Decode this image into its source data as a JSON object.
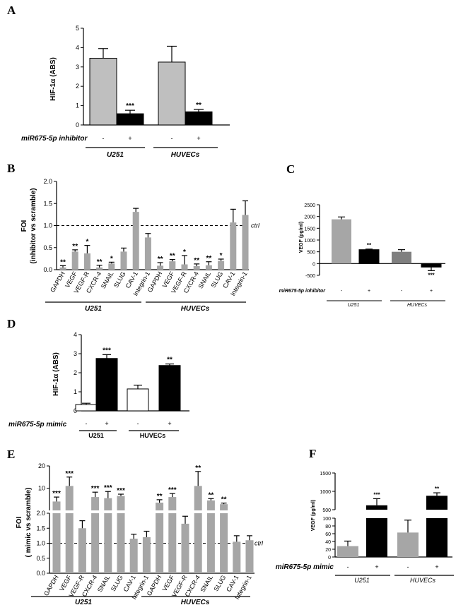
{
  "panels": {
    "A": "A",
    "B": "B",
    "C": "C",
    "D": "D",
    "E": "E",
    "F": "F"
  },
  "chart_data": [
    {
      "id": "A",
      "type": "bar",
      "ylabel": "HIF-1α (ABS)",
      "ylim": [
        0,
        5
      ],
      "yticks": [
        "0",
        "1",
        "2",
        "3",
        "4",
        "5"
      ],
      "condition_label": "miR675-5p inhibitor",
      "signs": [
        "-",
        "+",
        "-",
        "+"
      ],
      "groups": [
        "U251",
        "HUVECs"
      ],
      "bars": [
        {
          "value": 3.45,
          "err": 0.5,
          "color": "#bfbfbf",
          "stars": ""
        },
        {
          "value": 0.58,
          "err": 0.18,
          "color": "#000000",
          "stars": "***"
        },
        {
          "value": 3.25,
          "err": 0.82,
          "color": "#bfbfbf",
          "stars": ""
        },
        {
          "value": 0.68,
          "err": 0.12,
          "color": "#000000",
          "stars": "**"
        }
      ]
    },
    {
      "id": "B",
      "type": "bar",
      "ylabel": "FOI",
      "ylabel2": "(inhibitor vs scramble)",
      "ylim": [
        0,
        2
      ],
      "yticks": [
        "0.0",
        "0.5",
        "1.0",
        "1.5",
        "2.0"
      ],
      "reference_line": {
        "value": 1.0,
        "label": "ctrl"
      },
      "groups": [
        "U251",
        "HUVECs"
      ],
      "categories": [
        "GAPDH",
        "VEGF",
        "VEGF-R",
        "CXCR-4",
        "SNAIL",
        "SLUG",
        "CAV-1",
        "Integrin-1",
        "GAPDH",
        "VEGF",
        "VEGF-R",
        "CXCR-4",
        "SNAIL",
        "SLUG",
        "CAV-1",
        "Integrin-1"
      ],
      "values": [
        0.05,
        0.41,
        0.37,
        0.05,
        0.14,
        0.41,
        1.31,
        0.73,
        0.09,
        0.19,
        0.12,
        0.08,
        0.1,
        0.2,
        1.07,
        1.24
      ],
      "errors": [
        0.04,
        0.04,
        0.18,
        0.05,
        0.03,
        0.08,
        0.08,
        0.09,
        0.07,
        0.04,
        0.2,
        0.05,
        0.08,
        0.04,
        0.3,
        0.32
      ],
      "stars": [
        "**",
        "**",
        "*",
        "**",
        "*",
        "",
        "",
        "",
        "**",
        "**",
        "*",
        "**",
        "**",
        "*",
        "",
        ""
      ],
      "color": "#a6a6a6"
    },
    {
      "id": "C",
      "type": "bar",
      "ylabel": "VEGF (pg/ml)",
      "ylim": [
        -500,
        2500
      ],
      "yticks": [
        "-500",
        "0",
        "500",
        "1000",
        "1500",
        "2000",
        "2500"
      ],
      "condition_label": "miR675-5p inhibitor",
      "signs": [
        "-",
        "+",
        "-",
        "+"
      ],
      "groups": [
        "U251",
        "HUVECs"
      ],
      "bars": [
        {
          "value": 1880,
          "err": 100,
          "color": "#a6a6a6",
          "stars": ""
        },
        {
          "value": 590,
          "err": 25,
          "color": "#000000",
          "stars": "**"
        },
        {
          "value": 500,
          "err": 90,
          "color": "#7f7f7f",
          "stars": ""
        },
        {
          "value": -150,
          "err": 150,
          "color": "#000000",
          "stars": "***"
        }
      ]
    },
    {
      "id": "D",
      "type": "bar",
      "ylabel": "HIF-1α (ABS)",
      "ylim": [
        0,
        4
      ],
      "yticks": [
        "0",
        "1",
        "2",
        "3",
        "4"
      ],
      "condition_label": "miR675-5p mimic",
      "signs": [
        "-",
        "+",
        "-",
        "+"
      ],
      "groups": [
        "U251",
        "HUVECs"
      ],
      "bars": [
        {
          "value": 0.33,
          "err": 0.07,
          "color": "#ffffff",
          "stars": ""
        },
        {
          "value": 2.75,
          "err": 0.2,
          "color": "#000000",
          "stars": "***"
        },
        {
          "value": 1.15,
          "err": 0.2,
          "color": "#ffffff",
          "stars": ""
        },
        {
          "value": 2.38,
          "err": 0.08,
          "color": "#000000",
          "stars": "**"
        }
      ]
    },
    {
      "id": "E",
      "type": "bar",
      "ylabel": "FOI",
      "ylabel2": "( mimic vs scramble)",
      "ylim_lower": [
        0,
        2.0
      ],
      "ylim_upper": [
        0,
        20
      ],
      "yticks_lower": [
        "0.0",
        "0.5",
        "1.0",
        "1.5",
        "2.0"
      ],
      "yticks_upper": [
        "10",
        "20"
      ],
      "reference_line": {
        "value": 1.0,
        "label": "ctrl"
      },
      "groups": [
        "U251",
        "HUVECs"
      ],
      "categories": [
        "GAPDH",
        "VEGF",
        "VEGF-R",
        "CXCR-4",
        "SNAIL",
        "SLUG",
        "CAV-1",
        "Integrin-1",
        "GAPDH",
        "VEGF",
        "VEGF-R",
        "CXCR-4",
        "SNAIL",
        "SLUG",
        "CAV-1",
        "Integrin-1"
      ],
      "values": [
        4,
        11,
        1.5,
        6,
        5.5,
        6.5,
        1.15,
        1.2,
        3.5,
        6,
        1.65,
        11,
        4.5,
        2.8,
        1.05,
        1.1
      ],
      "errors": [
        2,
        4,
        0.25,
        2.2,
        3,
        0.8,
        0.15,
        0.2,
        1.3,
        1.6,
        0.25,
        6.5,
        0.8,
        0.5,
        0.2,
        0.15
      ],
      "stars": [
        "***",
        "***",
        "",
        "***",
        "***",
        "***",
        "",
        "",
        "**",
        "***",
        "",
        "**",
        "**",
        "**",
        "",
        ""
      ],
      "color": "#a6a6a6"
    },
    {
      "id": "F",
      "type": "bar",
      "ylabel": "VEGF (pg/ml)",
      "ylim_lower": [
        0,
        100
      ],
      "ylim_upper": [
        500,
        1500
      ],
      "yticks_lower": [
        "0",
        "20",
        "40",
        "60",
        "80",
        "100"
      ],
      "yticks_upper": [
        "500",
        "1000",
        "1500"
      ],
      "condition_label": "miR675-5p mimic",
      "signs": [
        "-",
        "+",
        "-",
        "+"
      ],
      "groups": [
        "U251",
        "HUVECs"
      ],
      "bars": [
        {
          "value": 28,
          "err": 13,
          "color": "#a6a6a6",
          "stars": ""
        },
        {
          "value": 620,
          "err": 180,
          "color": "#000000",
          "stars": "***"
        },
        {
          "value": 63,
          "err": 32,
          "color": "#a6a6a6",
          "stars": ""
        },
        {
          "value": 880,
          "err": 80,
          "color": "#000000",
          "stars": "**"
        }
      ]
    }
  ]
}
